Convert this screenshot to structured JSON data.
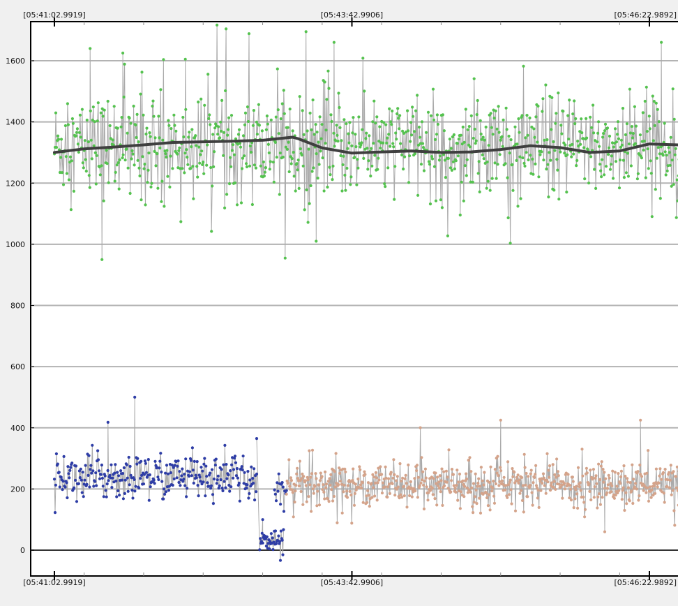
{
  "chart_data": {
    "type": "scatter",
    "title": "",
    "xlabel": "",
    "ylabel": "",
    "ylim": [
      -80,
      1700
    ],
    "xlim": [
      -10,
      220
    ],
    "x_ticks": [
      {
        "x": 0,
        "label": "[05:41:02.9919]"
      },
      {
        "x": 100,
        "label": "[05:43:42.9906]"
      },
      {
        "x": 200,
        "label": "[05:46:22.9892]"
      }
    ],
    "y_ticks": [
      0,
      200,
      400,
      600,
      800,
      1000,
      1200,
      1400,
      1600
    ],
    "grid": true,
    "legend": "none",
    "series": [
      {
        "color": "#55c24f",
        "marker": "dot",
        "x_range": [
          0,
          210
        ],
        "points": 900,
        "mean": 1320,
        "spread": 105,
        "outliers": [
          {
            "x": 16,
            "y": 950
          },
          {
            "x": 88,
            "y": 1010
          },
          {
            "x": 94,
            "y": 1660
          },
          {
            "x": 12,
            "y": 1640
          },
          {
            "x": 23,
            "y": 1625
          },
          {
            "x": 204,
            "y": 1660
          },
          {
            "x": 44,
            "y": 1605
          }
        ]
      },
      {
        "color": "#2e3da6",
        "marker": "dot",
        "x_range": [
          0,
          68
        ],
        "points": 300,
        "mean": 240,
        "spread": 48,
        "outliers": [
          {
            "x": 27,
            "y": 500
          },
          {
            "x": 18,
            "y": 418
          }
        ]
      },
      {
        "color": "#2e3da6",
        "marker": "dot",
        "x_range": [
          69,
          77
        ],
        "points": 40,
        "mean": 30,
        "spread": 20,
        "outliers": [
          {
            "x": 70,
            "y": 100
          },
          {
            "x": 68,
            "y": 365
          }
        ]
      },
      {
        "color": "#2e3da6",
        "marker": "dot",
        "x_range": [
          74,
          78
        ],
        "points": 15,
        "mean": 200,
        "spread": 40,
        "outliers": []
      },
      {
        "color": "#d4a38a",
        "marker": "dot",
        "x_range": [
          78,
          210
        ],
        "points": 620,
        "mean": 215,
        "spread": 45,
        "outliers": [
          {
            "x": 150,
            "y": 425
          },
          {
            "x": 197,
            "y": 425
          },
          {
            "x": 185,
            "y": 60
          }
        ]
      }
    ],
    "trend": {
      "color": "#3f3f3f",
      "x": [
        0,
        10,
        20,
        30,
        40,
        50,
        60,
        70,
        80,
        82,
        90,
        100,
        110,
        120,
        130,
        140,
        150,
        160,
        170,
        180,
        190,
        200,
        210
      ],
      "y": [
        1300,
        1312,
        1318,
        1325,
        1333,
        1335,
        1337,
        1340,
        1350,
        1345,
        1315,
        1298,
        1302,
        1305,
        1300,
        1302,
        1310,
        1322,
        1316,
        1300,
        1305,
        1328,
        1325
      ]
    },
    "connector_color": "#aaaaaa",
    "grid_color": "#b3b3b3",
    "axis_color": "#000000",
    "zero_line_color": "#333333"
  }
}
